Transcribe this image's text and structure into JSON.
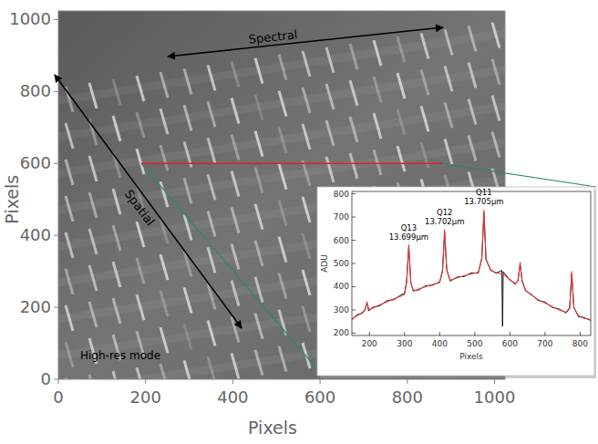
{
  "chart_data": [
    {
      "type": "image",
      "x_label": "Pixels",
      "y_label": "Pixels",
      "xlim": [
        0,
        1024
      ],
      "ylim": [
        0,
        1024
      ],
      "xticks": [
        0,
        200,
        400,
        600,
        800,
        1000
      ],
      "yticks": [
        0,
        200,
        400,
        600,
        800,
        1000
      ],
      "annotations": [
        "Spectral",
        "Spatial",
        "High-res mode"
      ],
      "cut_row": 600,
      "cut_x": [
        190,
        880
      ],
      "color": "#e02020"
    },
    {
      "type": "line",
      "x_label": "Pixels",
      "y_label": "ADU",
      "x": [
        150,
        165,
        180,
        188,
        193,
        198,
        210,
        230,
        250,
        270,
        290,
        300,
        306,
        312,
        318,
        325,
        340,
        360,
        380,
        400,
        408,
        414,
        420,
        430,
        450,
        470,
        490,
        510,
        520,
        526,
        532,
        545,
        560,
        577,
        579,
        581,
        600,
        615,
        623,
        629,
        635,
        645,
        660,
        680,
        700,
        720,
        740,
        760,
        770,
        776,
        782,
        795,
        810,
        830
      ],
      "series": [
        {
          "color": "#000000",
          "values": [
            258,
            280,
            286,
            305,
            330,
            296,
            312,
            318,
            340,
            344,
            365,
            372,
            425,
            570,
            415,
            384,
            386,
            404,
            406,
            422,
            465,
            635,
            475,
            424,
            442,
            444,
            460,
            458,
            525,
            720,
            515,
            474,
            458,
            470,
            230,
            465,
            428,
            414,
            425,
            495,
            424,
            381,
            369,
            341,
            334,
            311,
            304,
            287,
            306,
            455,
            312,
            271,
            268,
            255
          ]
        },
        {
          "color": "#e03a3a",
          "values": [
            262,
            275,
            290,
            300,
            335,
            302,
            308,
            322,
            335,
            348,
            360,
            368,
            420,
            580,
            420,
            380,
            390,
            400,
            410,
            418,
            470,
            645,
            470,
            428,
            438,
            448,
            455,
            462,
            520,
            730,
            520,
            470,
            462,
            455,
            454,
            453,
            432,
            410,
            430,
            505,
            420,
            385,
            365,
            345,
            330,
            315,
            300,
            290,
            310,
            465,
            310,
            275,
            265,
            258
          ]
        }
      ],
      "xlim": [
        150,
        830
      ],
      "ylim": [
        190,
        810
      ],
      "xticks": [
        200,
        300,
        400,
        500,
        600,
        700,
        800
      ],
      "yticks": [
        200,
        300,
        400,
        500,
        600,
        700,
        800
      ],
      "annotations": [
        {
          "label": "Q13",
          "text": "13.699µm",
          "x": 312,
          "y": 580
        },
        {
          "label": "Q12",
          "text": "13.702µm",
          "x": 414,
          "y": 645
        },
        {
          "label": "Q11",
          "text": "13.705µm",
          "x": 526,
          "y": 730
        }
      ]
    }
  ]
}
